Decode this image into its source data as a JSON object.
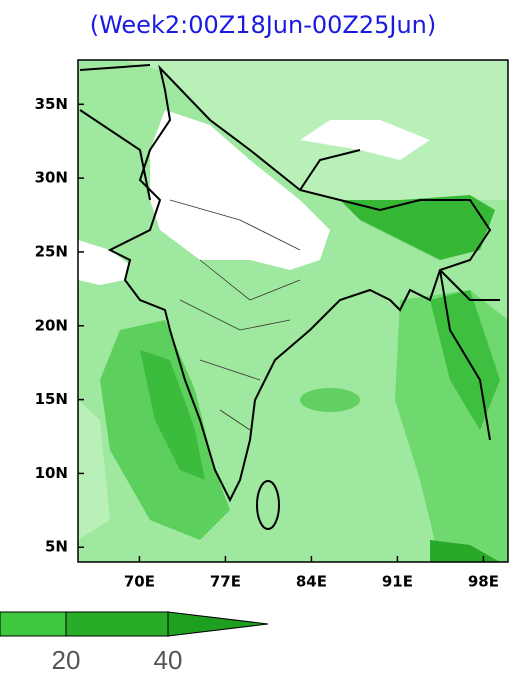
{
  "title": "(Week2:00Z18Jun-00Z25Jun)",
  "map": {
    "xlim": [
      65,
      100
    ],
    "ylim": [
      4,
      38
    ],
    "xticks": [
      {
        "value": 70,
        "label": "70E"
      },
      {
        "value": 77,
        "label": "77E"
      },
      {
        "value": 84,
        "label": "84E"
      },
      {
        "value": 91,
        "label": "91E"
      },
      {
        "value": 98,
        "label": "98E"
      }
    ],
    "yticks": [
      {
        "value": 5,
        "label": "5N"
      },
      {
        "value": 10,
        "label": "10N"
      },
      {
        "value": 15,
        "label": "15N"
      },
      {
        "value": 20,
        "label": "20N"
      },
      {
        "value": 25,
        "label": "25N"
      },
      {
        "value": 30,
        "label": "30N"
      },
      {
        "value": 35,
        "label": "35N"
      }
    ]
  },
  "colorbar": {
    "ticks": [
      "20",
      "40"
    ]
  }
}
